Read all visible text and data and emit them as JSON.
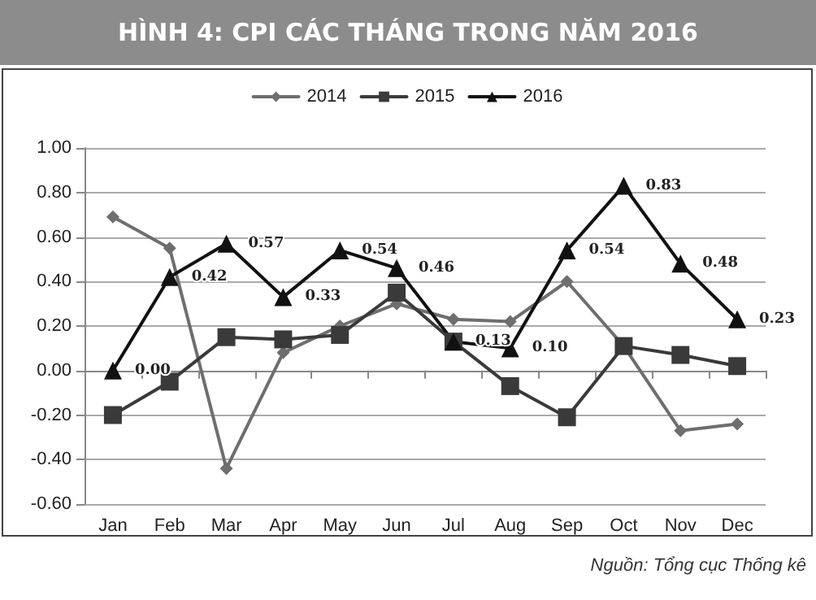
{
  "chart_data": {
    "type": "line",
    "title": "HÌNH 4: CPI CÁC THÁNG TRONG NĂM 2016",
    "annotations": [
      "Nguồn: Tổng cục Thống kê"
    ],
    "categories": [
      "Jan",
      "Feb",
      "Mar",
      "Apr",
      "May",
      "Jun",
      "Jul",
      "Aug",
      "Sep",
      "Oct",
      "Nov",
      "Dec"
    ],
    "series": [
      {
        "name": "2014",
        "color": "#6e6e6e",
        "marker": "diamond",
        "values": [
          0.69,
          0.55,
          -0.44,
          0.08,
          0.2,
          0.3,
          0.23,
          0.22,
          0.4,
          0.11,
          -0.27,
          -0.24
        ]
      },
      {
        "name": "2015",
        "color": "#3a3a3a",
        "marker": "square",
        "values": [
          -0.2,
          -0.05,
          0.15,
          0.14,
          0.16,
          0.35,
          0.13,
          -0.07,
          -0.21,
          0.11,
          0.07,
          0.02
        ]
      },
      {
        "name": "2016",
        "color": "#111111",
        "marker": "triangle",
        "values": [
          0,
          0.42,
          0.57,
          0.33,
          0.54,
          0.46,
          0.13,
          0.1,
          0.54,
          0.83,
          0.48,
          0.23
        ],
        "value_labels": [
          "0.00",
          "0.42",
          "0.57",
          "0.33",
          "0.54",
          "0.46",
          "0.13",
          "0.10",
          "0.54",
          "0.83",
          "0.48",
          "0.23"
        ]
      }
    ],
    "ylim": [
      -0.6,
      1
    ],
    "yticks": [
      {
        "value": -0.6,
        "label": "-0.60"
      },
      {
        "value": -0.4,
        "label": "-0.40"
      },
      {
        "value": -0.2,
        "label": "-0.20"
      },
      {
        "value": 0,
        "label": "0.00"
      },
      {
        "value": 0.2,
        "label": "0.20"
      },
      {
        "value": 0.4,
        "label": "0.40"
      },
      {
        "value": 0.6,
        "label": "0.60"
      },
      {
        "value": 0.8,
        "label": "0.80"
      },
      {
        "value": 1,
        "label": "1.00"
      }
    ],
    "grid": "y",
    "legend": "top",
    "line_style": "solid"
  }
}
